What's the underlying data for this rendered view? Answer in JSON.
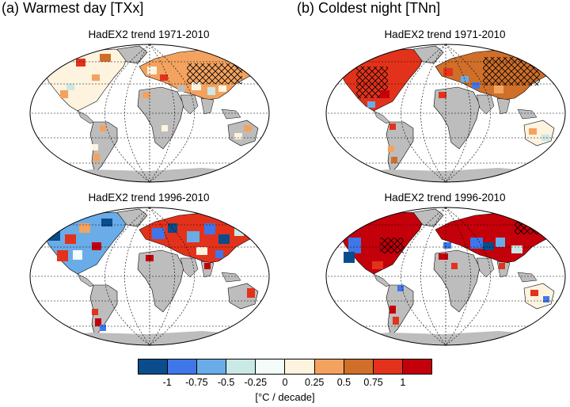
{
  "panels": [
    {
      "title": "(a) Warmest day [TXx]",
      "maps": [
        {
          "title": "HadEX2 trend 1971-2010"
        },
        {
          "title": "HadEX2 trend 1996-2010"
        }
      ]
    },
    {
      "title": "(b) Coldest night [TNn]",
      "maps": [
        {
          "title": "HadEX2 trend 1971-2010"
        },
        {
          "title": "HadEX2 trend 1996-2010"
        }
      ]
    }
  ],
  "legend": {
    "colors": [
      "#0b4c8c",
      "#3f77e8",
      "#6aace8",
      "#c9e8e6",
      "#f4fbfb",
      "#fdf3df",
      "#f3a35f",
      "#cf6f2a",
      "#e3321b",
      "#c4000a"
    ],
    "tick_labels": [
      "-1",
      "-0.75",
      "-0.5",
      "-0.25",
      "0",
      "0.25",
      "0.5",
      "0.75",
      "1"
    ],
    "units": "[°C / decade]"
  },
  "colors": {
    "land_no_data": "#bdbdbd",
    "hatch": "#000000"
  }
}
